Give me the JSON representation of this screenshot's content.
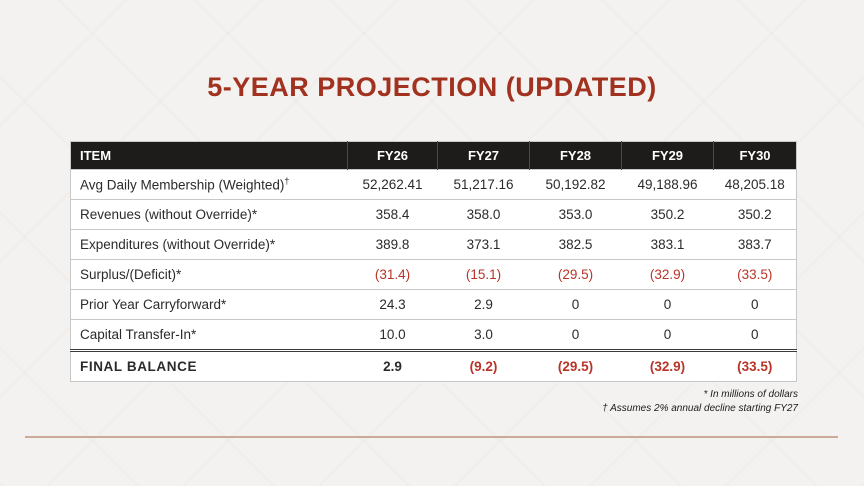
{
  "slide": {
    "title": "5-YEAR PROJECTION (UPDATED)",
    "footnotes": [
      "* In millions of dollars",
      "† Assumes 2% annual decline starting FY27"
    ]
  },
  "table": {
    "columns": [
      "ITEM",
      "FY26",
      "FY27",
      "FY28",
      "FY29",
      "FY30"
    ],
    "rows": [
      {
        "label": "Avg Daily Membership (Weighted)",
        "sup": "†",
        "values": [
          "52,262.41",
          "51,217.16",
          "50,192.82",
          "49,188.96",
          "48,205.18"
        ]
      },
      {
        "label": "Revenues (without Override)*",
        "values": [
          "358.4",
          "358.0",
          "353.0",
          "350.2",
          "350.2"
        ]
      },
      {
        "label": "Expenditures (without Override)*",
        "values": [
          "389.8",
          "373.1",
          "382.5",
          "383.1",
          "383.7"
        ]
      },
      {
        "label": "Surplus/(Deficit)*",
        "values": [
          "(31.4)",
          "(15.1)",
          "(29.5)",
          "(32.9)",
          "(33.5)"
        ]
      },
      {
        "label": "Prior Year Carryforward*",
        "values": [
          "24.3",
          "2.9",
          "0",
          "0",
          "0"
        ]
      },
      {
        "label": "Capital Transfer-In*",
        "values": [
          "10.0",
          "3.0",
          "0",
          "0",
          "0"
        ]
      },
      {
        "label": "FINAL BALANCE",
        "is_total": true,
        "values": [
          "2.9",
          "(9.2)",
          "(29.5)",
          "(32.9)",
          "(33.5)"
        ]
      }
    ]
  },
  "colors": {
    "title_red": "#a23220",
    "negative_red": "#b93428",
    "header_bg": "#1e1c1a",
    "divider_tan": "#c9ab97",
    "slide_bg": "#f4f2f0"
  }
}
